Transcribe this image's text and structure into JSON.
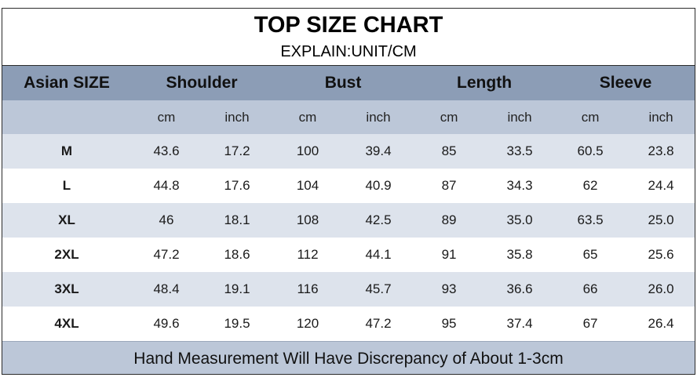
{
  "title": "TOP SIZE CHART",
  "subtitle": "EXPLAIN:UNIT/CM",
  "headers": {
    "size": "Asian SIZE",
    "groups": [
      "Shoulder",
      "Bust",
      "Length",
      "Sleeve"
    ]
  },
  "units": [
    "cm",
    "inch",
    "cm",
    "inch",
    "cm",
    "inch",
    "cm",
    "inch"
  ],
  "rows": [
    {
      "size": "M",
      "values": [
        "43.6",
        "17.2",
        "100",
        "39.4",
        "85",
        "33.5",
        "60.5",
        "23.8"
      ]
    },
    {
      "size": "L",
      "values": [
        "44.8",
        "17.6",
        "104",
        "40.9",
        "87",
        "34.3",
        "62",
        "24.4"
      ]
    },
    {
      "size": "XL",
      "values": [
        "46",
        "18.1",
        "108",
        "42.5",
        "89",
        "35.0",
        "63.5",
        "25.0"
      ]
    },
    {
      "size": "2XL",
      "values": [
        "47.2",
        "18.6",
        "112",
        "44.1",
        "91",
        "35.8",
        "65",
        "25.6"
      ]
    },
    {
      "size": "3XL",
      "values": [
        "48.4",
        "19.1",
        "116",
        "45.7",
        "93",
        "36.6",
        "66",
        "26.0"
      ]
    },
    {
      "size": "4XL",
      "values": [
        "49.6",
        "19.5",
        "120",
        "47.2",
        "95",
        "37.4",
        "67",
        "26.4"
      ]
    }
  ],
  "footer": "Hand Measurement Will Have Discrepancy of About 1-3cm",
  "colors": {
    "header_band": "#8c9db6",
    "unit_band": "#bcc7d8",
    "row_shade": "#dde3ec",
    "row_plain": "#ffffff"
  }
}
